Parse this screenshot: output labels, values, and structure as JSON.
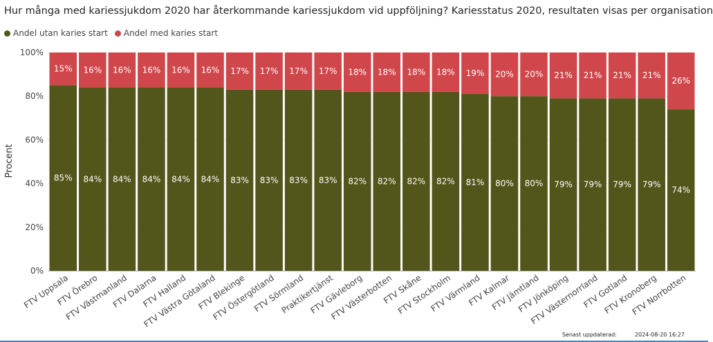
{
  "header": {
    "title": "Hur många med kariessjukdom 2020 har återkommande kariessjukdom vid uppföljning? Kariesstatus 2020, resultaten visas per organisation"
  },
  "legend": {
    "items": [
      {
        "label": "Andel utan karies start",
        "color": "#53561a"
      },
      {
        "label": "Andel med karies start",
        "color": "#d0474b"
      }
    ]
  },
  "footer": {
    "updated_label": "Senast uppdaterad:",
    "updated_value": "2024-08-20 16:27"
  },
  "chart_data": {
    "type": "bar",
    "stacked": true,
    "ylabel": "Procent",
    "ylim": [
      0,
      100
    ],
    "yticks": [
      "0%",
      "20%",
      "40%",
      "60%",
      "80%",
      "100%"
    ],
    "categories": [
      "FTV Uppsala",
      "FTV Örebro",
      "FTV Västmanland",
      "FTV Dalarna",
      "FTV Halland",
      "FTV Västra Götaland",
      "FTV Blekinge",
      "FTV Östergötland",
      "FTV Sörmland",
      "Praktikertjänst",
      "FTV Gävleborg",
      "FTV Västerbotten",
      "FTV Skåne",
      "FTV Stockholm",
      "FTV Värmland",
      "FTV Kalmar",
      "FTV Jämtland",
      "FTV Jönköping",
      "FTV Västernorrland",
      "FTV Gotland",
      "FTV Kronoberg",
      "FTV Norrbotten"
    ],
    "series": [
      {
        "name": "Andel utan karies start",
        "color": "#53561a",
        "values": [
          85,
          84,
          84,
          84,
          84,
          84,
          83,
          83,
          83,
          83,
          82,
          82,
          82,
          82,
          81,
          80,
          80,
          79,
          79,
          79,
          79,
          74
        ],
        "labels": [
          "85%",
          "84%",
          "84%",
          "84%",
          "84%",
          "84%",
          "83%",
          "83%",
          "83%",
          "83%",
          "82%",
          "82%",
          "82%",
          "82%",
          "81%",
          "80%",
          "80%",
          "79%",
          "79%",
          "79%",
          "79%",
          "74%"
        ]
      },
      {
        "name": "Andel med karies start",
        "color": "#d0474b",
        "values": [
          15,
          16,
          16,
          16,
          16,
          16,
          17,
          17,
          17,
          17,
          18,
          18,
          18,
          18,
          19,
          20,
          20,
          21,
          21,
          21,
          21,
          26
        ],
        "labels": [
          "15%",
          "16%",
          "16%",
          "16%",
          "16%",
          "16%",
          "17%",
          "17%",
          "17%",
          "17%",
          "18%",
          "18%",
          "18%",
          "18%",
          "19%",
          "20%",
          "20%",
          "21%",
          "21%",
          "21%",
          "21%",
          "26%"
        ]
      }
    ],
    "grid": true,
    "legend_position": "top-left"
  }
}
